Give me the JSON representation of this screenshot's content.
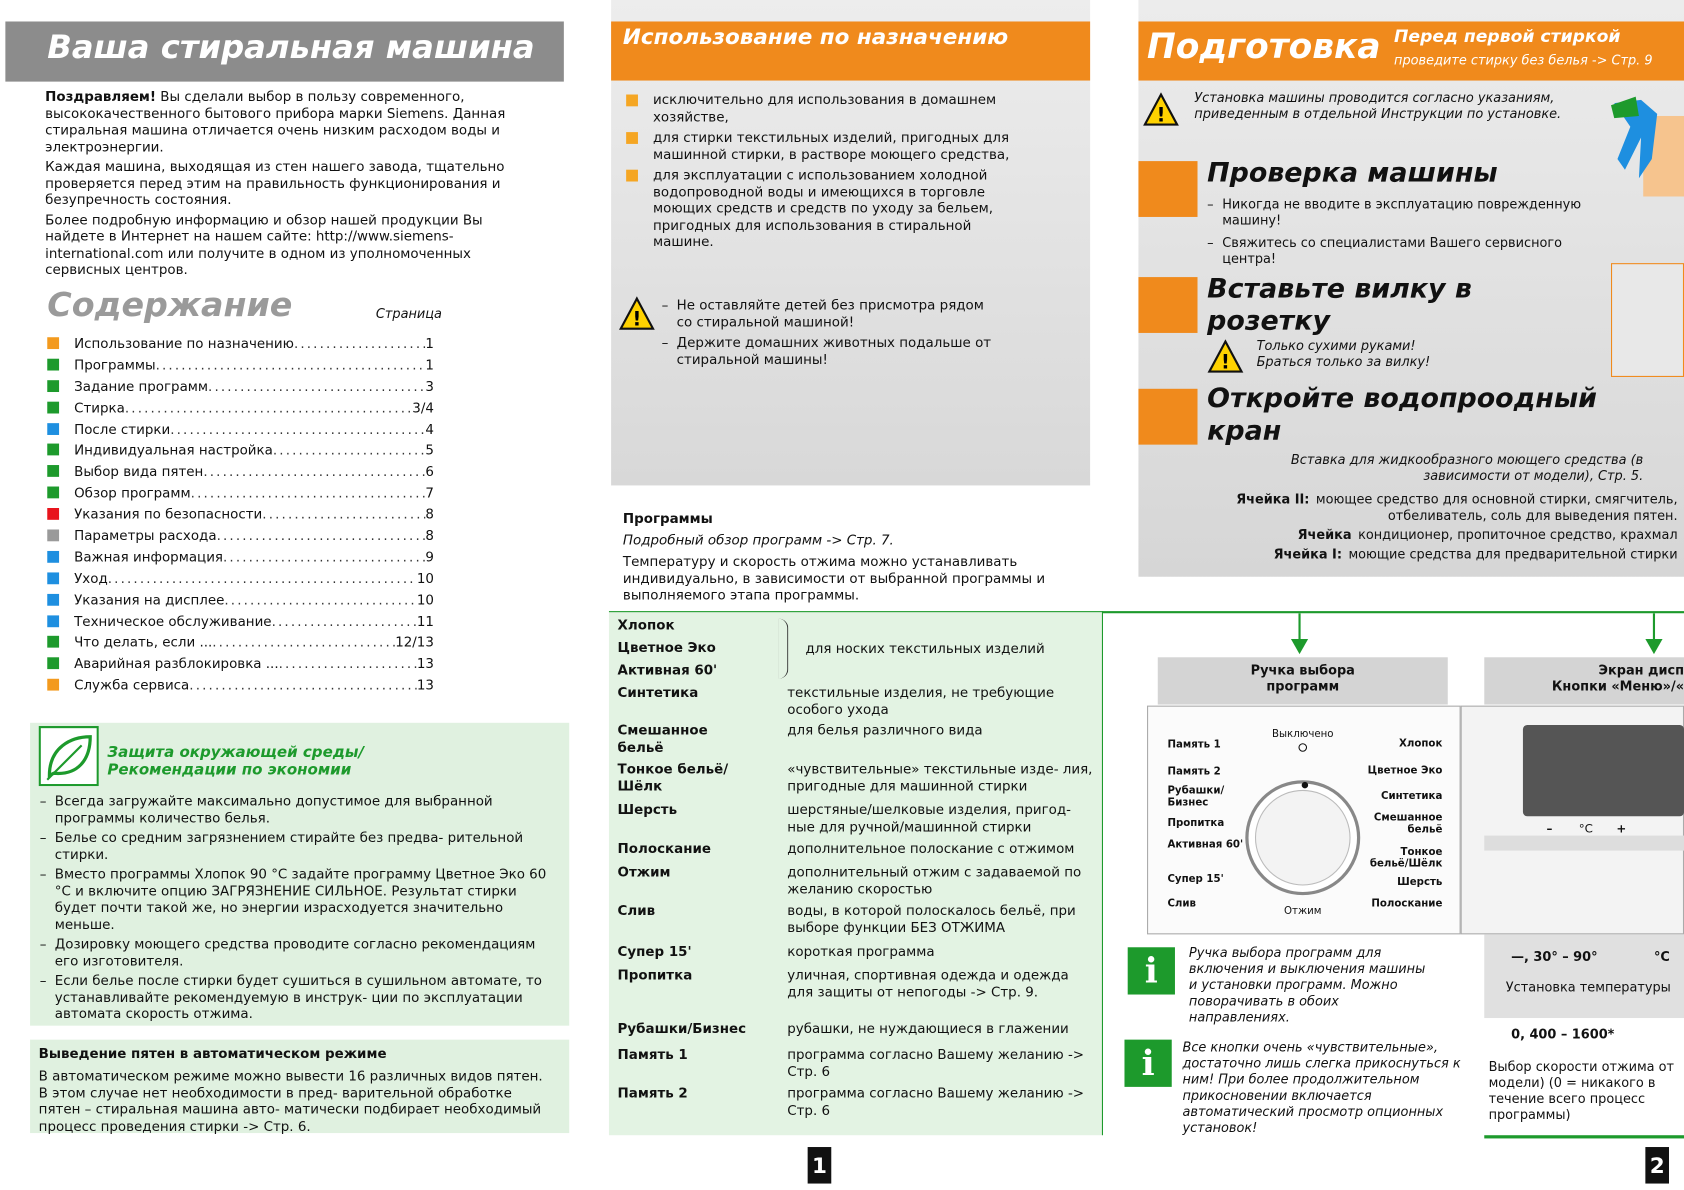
{
  "left": {
    "title": "Ваша стиральная машина",
    "intro": {
      "lead": "Поздравляем!",
      "p1": "Вы сделали выбор в пользу современного, высококачественного бытового прибора марки Siemens. Данная стиральная машина отличается очень низким расходом воды и электроэнергии.",
      "p2": "Каждая машина, выходящая из стен нашего завода, тщательно проверяется перед этим на правильность функционирования и безупречность состояния.",
      "p3": "Более подробную информацию и обзор нашей продукции Вы найдете в Интернет на нашем сайте: http://www.siemens-international.com или получите в одном из уполномоченных сервисных центров."
    },
    "contents": {
      "title": "Содержание",
      "page_label": "Страница",
      "items": [
        {
          "label": "Использование по назначению",
          "page": "1",
          "color": "#f39a1e"
        },
        {
          "label": "Программы",
          "page": "1",
          "color": "#1d9a2c"
        },
        {
          "label": "Задание программ",
          "page": "3",
          "color": "#1d9a2c"
        },
        {
          "label": "Стирка",
          "page": "3/4",
          "color": "#1d9a2c"
        },
        {
          "label": "После стирки",
          "page": "4",
          "color": "#1e8fe0"
        },
        {
          "label": "Индивидуальная настройка",
          "page": "5",
          "color": "#1d9a2c"
        },
        {
          "label": "Выбор вида пятен",
          "page": "6",
          "color": "#1d9a2c"
        },
        {
          "label": "Обзор программ",
          "page": "7",
          "color": "#1d9a2c"
        },
        {
          "label": "Указания по безопасности",
          "page": "8",
          "color": "#e8141c"
        },
        {
          "label": "Параметры расхода",
          "page": "8",
          "color": "#9a9a9a"
        },
        {
          "label": "Важная информация",
          "page": "9",
          "color": "#1e8fe0"
        },
        {
          "label": "Уход",
          "page": "10",
          "color": "#1e8fe0"
        },
        {
          "label": "Указания на дисплее",
          "page": "10",
          "color": "#1e8fe0"
        },
        {
          "label": "Техническое обслуживание",
          "page": "11",
          "color": "#1e8fe0"
        },
        {
          "label": "Что делать, если ...",
          "page": "12/13",
          "color": "#1d9a2c"
        },
        {
          "label": "Аварийная разблокировка ...",
          "page": "13",
          "color": "#1d9a2c"
        },
        {
          "label": "Служба сервиса",
          "page": "13",
          "color": "#f39a1e"
        }
      ]
    },
    "eco": {
      "title": "Защита окружающей среды/ Рекомендации по экономии",
      "items": [
        "Всегда загружайте максимально допустимое для выбранной программы количество белья.",
        "Белье со средним загрязнением стирайте без предва- рительной стирки.",
        "Вместо программы Хлопок 90 °C задайте программу Цветное Эко 60 °C и включите опцию ЗАГРЯЗНЕНИЕ СИЛЬНОЕ. Результат стирки будет почти такой же, но энергии израсходуется значительно меньше.",
        "Дозировку моющего средства проводите согласно рекомендациям его изготовителя.",
        "Если белье после стирки будет сушиться в сушильном автомате, то устанавливайте рекомендуемую в инструк- ции по эксплуатации автомата скорость отжима."
      ]
    },
    "stains": {
      "title": "Выведение пятен в автоматическом режиме",
      "text": "В автоматическом режиме можно вывести 16 различных видов пятен. В этом случае нет необходимости в пред- варительной обработке пятен – стиральная машина авто- матически подбирает необходимый процесс проведения стирки -> Стр. 6."
    }
  },
  "middle": {
    "title": "Использование по назначению",
    "uses": [
      "исключительно для использования в домашнем хозяйстве,",
      "для стирки текстильных изделий, пригодных для машинной стирки, в растворе моющего средства,",
      "для эксплуатации с использованием холодной водопроводной воды и имеющихся в торговле моющих средств и средств по уходу за бельем, пригодных для использования в стиральной машине."
    ],
    "warnings": [
      "Не оставляйте детей без присмотра рядом со стиральной машиной!",
      "Держите домашних животных подальше от стиральной машины!"
    ],
    "programs": {
      "title": "Программы",
      "ref": "Подробный обзор программ -> Стр. 7.",
      "text": "Температуру и скорость отжима можно устанавливать индивидуально, в зависимости от выбранной программы и выполняемого этапа программы.",
      "group": {
        "names": [
          "Хлопок",
          "Цветное Эко",
          "Активная 60'"
        ],
        "description": "для носких текстильных изделий"
      },
      "rows": [
        {
          "name": "Синтетика",
          "description": "текстильные изделия, не требующие особого ухода"
        },
        {
          "name": "Смешанное бельё",
          "description": "для белья различного вида"
        },
        {
          "name": "Тонкое бельё/Шёлк",
          "description": "«чувствительные» текстильные изде- лия, пригодные для машинной стирки"
        },
        {
          "name": "Шерсть",
          "description": "шерстяные/шелковые изделия, пригод- ные для ручной/машинной стирки"
        },
        {
          "name": "Полоскание",
          "description": "дополнительное полоскание с отжимом"
        },
        {
          "name": "Отжим",
          "description": "дополнительный отжим с задаваемой по желанию скоростью"
        },
        {
          "name": "Слив",
          "description": "воды, в которой полоскалось бельё, при выборе функции БЕЗ ОТЖИМА"
        },
        {
          "name": "Супер 15'",
          "description": "короткая программа"
        },
        {
          "name": "Пропитка",
          "description": "уличная, спортивная одежда и одежда для защиты от непогоды -> Стр. 9."
        },
        {
          "name": "Рубашки/Бизнес",
          "description": "рубашки, не нуждающиеся в глажении"
        },
        {
          "name": "Память 1",
          "description": "программа согласно Вашему желанию -> Стр. 6"
        },
        {
          "name": "Память 2",
          "description": "программа согласно Вашему желанию -> Стр. 6"
        }
      ]
    },
    "page_number": "1"
  },
  "right": {
    "title": "Подготовка",
    "subtitle": "Перед первой стиркой",
    "subtitle_note": "проведите стирку без белья -> Стр. 9",
    "install_note": "Установка машины проводится согласно указаниям, приведенным в отдельной Инструкции по установке.",
    "check": {
      "title": "Проверка машины",
      "items": [
        "Никогда не вводите в эксплуатацию поврежденную машину!",
        "Свяжитесь со специалистами Вашего сервисного центра!"
      ]
    },
    "plug": {
      "title": "Вставьте вилку в розетку",
      "note": "Только сухими руками! Браться только за вилку!"
    },
    "tap": {
      "title": "Откройте водопроодный кран"
    },
    "drawer": {
      "insert": "Вставка для жидкообразного моющего средства (в зависимости от модели), Стр. 5.",
      "cells": [
        {
          "label": "Ячейка II:",
          "text": "моющее средство для основной стирки, смягчитель, отбеливатель, соль для выведения пятен."
        },
        {
          "label": "Ячейка",
          "text": "кондиционер, пропиточное средство, крахмал"
        },
        {
          "label": "Ячейка I:",
          "text": "моющие средства для предварительной стирки"
        }
      ]
    },
    "dial": {
      "title": "Ручка выбора программ",
      "labels": [
        "Выключено",
        "Память 1",
        "Память 2",
        "Рубашки/ Бизнес",
        "Пропитка",
        "Активная 60'",
        "Супер 15'",
        "Слив",
        "Отжим",
        "Полоскание",
        "Шерсть",
        "Тонкое бельё/Шёлк",
        "Смешанное бельё",
        "Синтетика",
        "Цветное Эко",
        "Хлопок"
      ]
    },
    "display": {
      "title": "Экран дисп",
      "subtitle": "Кнопки «Меню»/«",
      "minus": "–",
      "unit": "°C",
      "plus": "+"
    },
    "info": [
      "Ручка выбора программ для включения и выключения машины и установки программ. Можно поворачивать в обоих направлениях.",
      "Все кнопки очень «чувствительные», достаточно лишь слегка прикоснуться к ним! При более продолжительном прикосновении включается автоматический просмотр опционных установок!"
    ],
    "temperature": {
      "range": "—, 30° – 90°",
      "unit": "°C",
      "text": "Установка температуры"
    },
    "spin": {
      "range": "0, 400 – 1600*",
      "text": "Выбор скорости отжима от модели) (0 = никакого в течение всего процесс программы)"
    },
    "page_number": "2"
  }
}
